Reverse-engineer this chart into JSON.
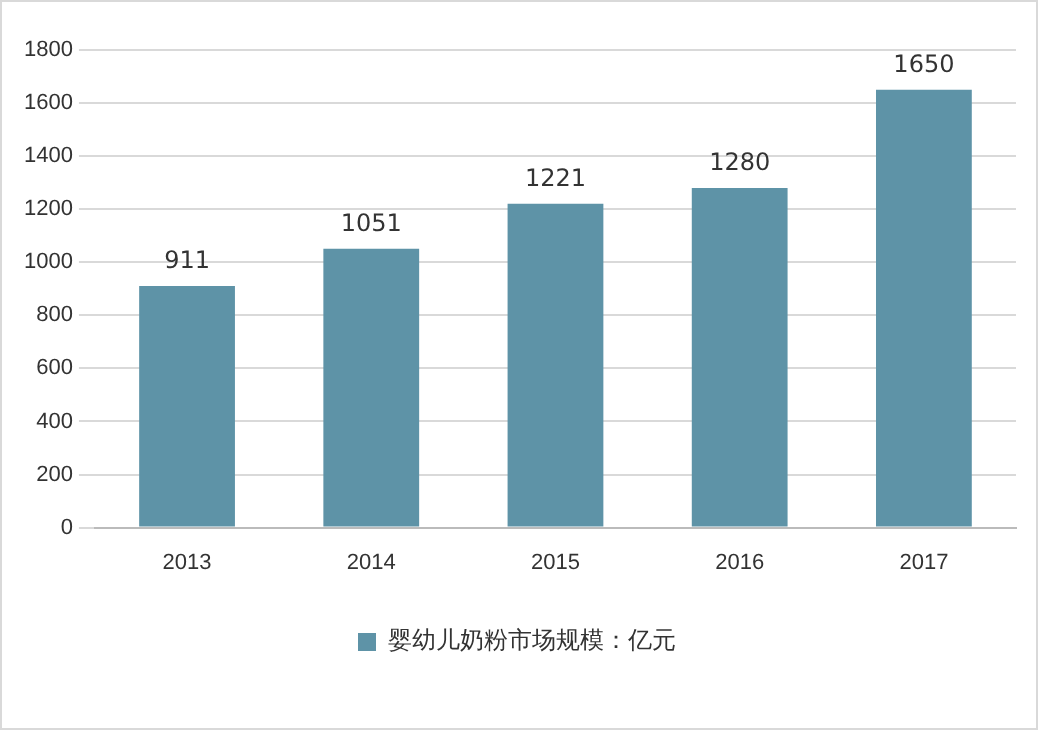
{
  "chart_data": {
    "type": "bar",
    "categories": [
      "2013",
      "2014",
      "2015",
      "2016",
      "2017"
    ],
    "series": [
      {
        "name": "婴幼儿奶粉市场规模：亿元",
        "color": "#5e93a7",
        "values": [
          911,
          1051,
          1221,
          1280,
          1650
        ]
      }
    ],
    "ylim": [
      0,
      1800
    ],
    "yticks": [
      0,
      200,
      400,
      600,
      800,
      1000,
      1200,
      1400,
      1600,
      1800
    ],
    "grid": "y",
    "legend": "bottom",
    "data_labels": true
  }
}
